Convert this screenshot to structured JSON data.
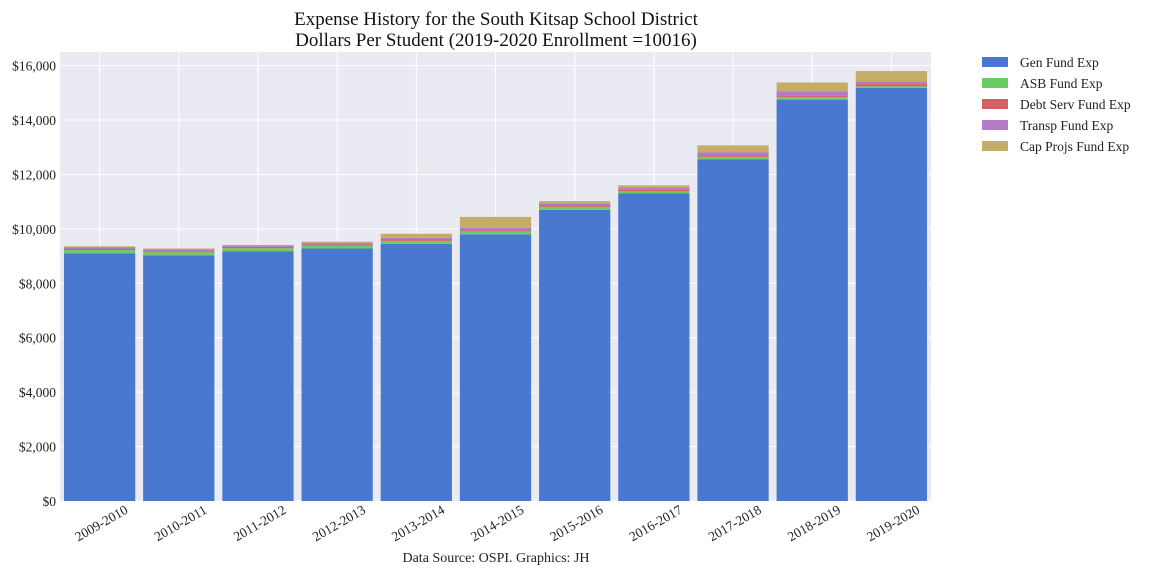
{
  "chart_data": {
    "type": "bar",
    "stacked": true,
    "title": "Expense History for the South Kitsap School District",
    "subtitle": "Dollars Per Student (2019-2020 Enrollment =10016)",
    "xlabel": "",
    "ylabel": "",
    "source": "Data Source: OSPI. Graphics: JH",
    "ylim": [
      0,
      16500
    ],
    "yticks": [
      0,
      2000,
      4000,
      6000,
      8000,
      10000,
      12000,
      14000,
      16000
    ],
    "ytick_labels": [
      "$0",
      "$2,000",
      "$4,000",
      "$6,000",
      "$8,000",
      "$10,000",
      "$12,000",
      "$14,000",
      "$16,000"
    ],
    "grid": true,
    "legend_position": "outside-top-right",
    "categories": [
      "2009-2010",
      "2010-2011",
      "2011-2012",
      "2012-2013",
      "2013-2014",
      "2014-2015",
      "2015-2016",
      "2016-2017",
      "2017-2018",
      "2018-2019",
      "2019-2020"
    ],
    "series": [
      {
        "name": "Gen Fund Exp",
        "color": "#4878cf",
        "values": [
          9100,
          9030,
          9180,
          9280,
          9450,
          9800,
          10700,
          11300,
          12550,
          14750,
          15180
        ]
      },
      {
        "name": "ASB Fund Exp",
        "color": "#6acc65",
        "values": [
          120,
          110,
          110,
          100,
          110,
          110,
          110,
          90,
          100,
          100,
          60
        ]
      },
      {
        "name": "Debt Serv Fund Exp",
        "color": "#d65f5f",
        "values": [
          40,
          40,
          50,
          50,
          50,
          30,
          50,
          50,
          60,
          60,
          80
        ]
      },
      {
        "name": "Transp Fund Exp",
        "color": "#b47cc7",
        "values": [
          70,
          70,
          60,
          60,
          60,
          100,
          80,
          90,
          110,
          150,
          100
        ]
      },
      {
        "name": "Cap Projs Fund Exp",
        "color": "#c4ad66",
        "values": [
          30,
          30,
          10,
          40,
          150,
          400,
          80,
          70,
          250,
          320,
          380
        ]
      }
    ]
  }
}
